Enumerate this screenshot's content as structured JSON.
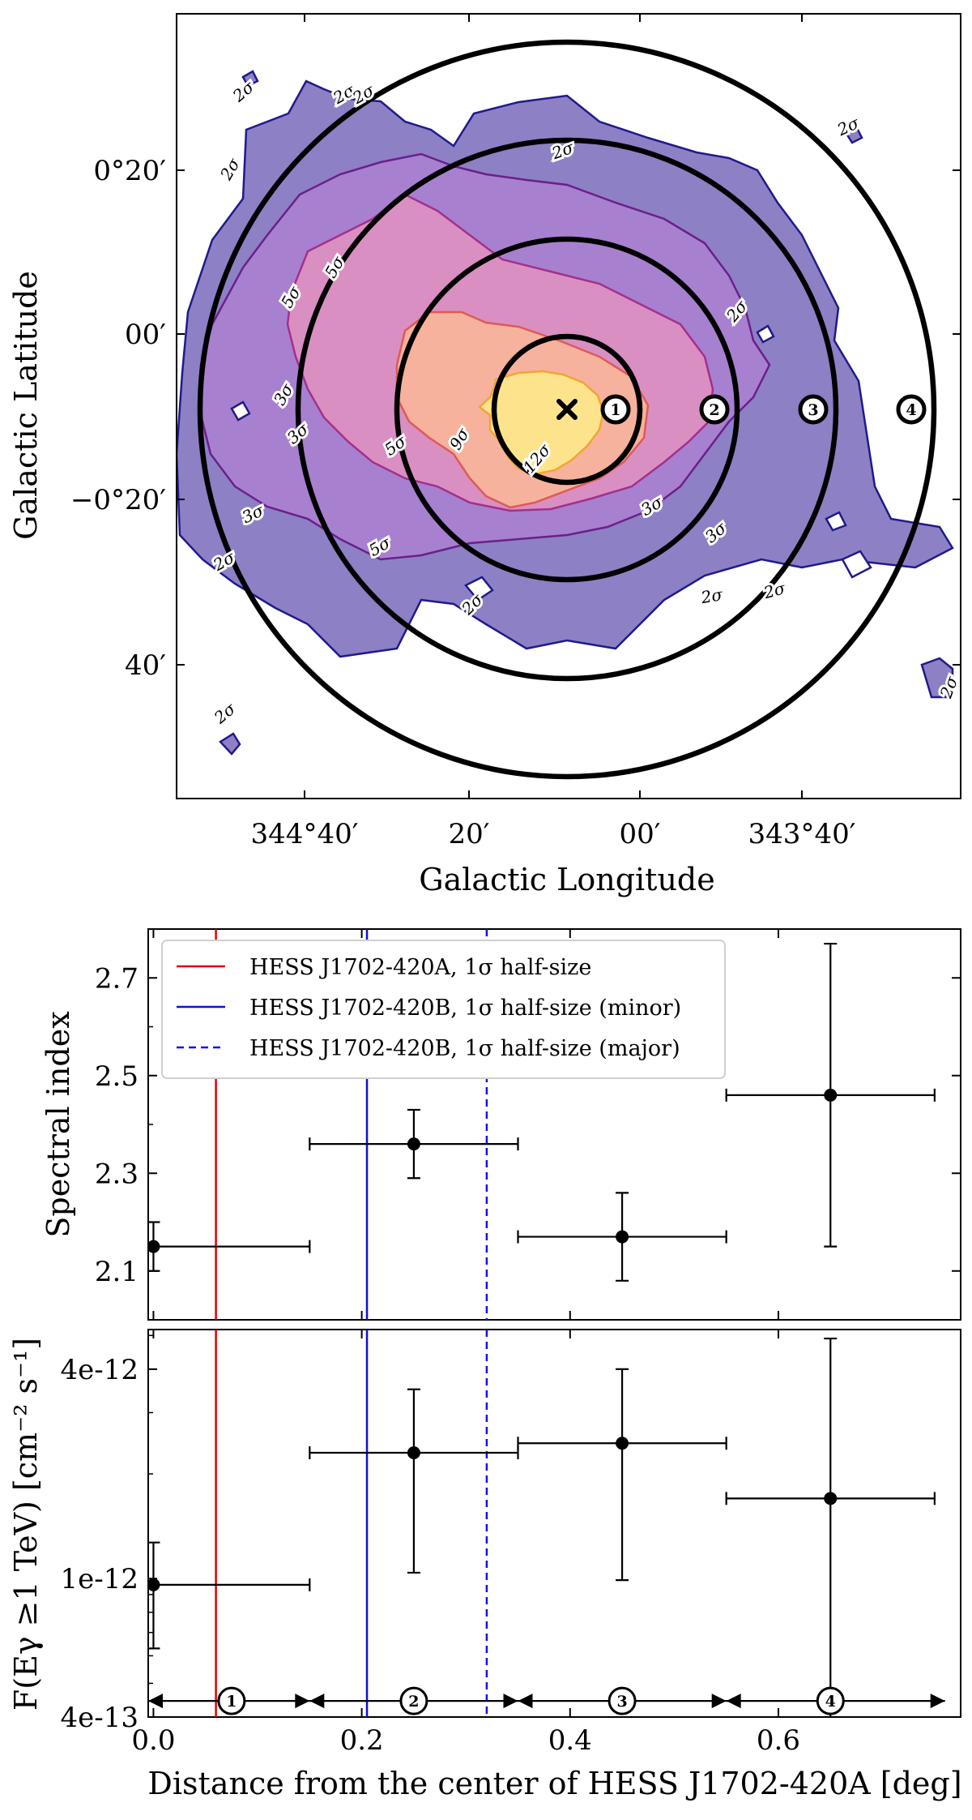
{
  "map": {
    "xlabel": "Galactic Longitude",
    "ylabel": "Galactic Latitude",
    "xticks": [
      "344°40′",
      "20′",
      "00′",
      "343°40′"
    ],
    "yticks": [
      "0°20′",
      "00′",
      "−0°20′",
      "40′"
    ],
    "contour_levels": [
      "2σ",
      "3σ",
      "5σ",
      "9σ",
      "12σ"
    ],
    "contour_fill_colors": [
      "#8d80c4",
      "#a880d0",
      "#d98fc2",
      "#f6b29c",
      "#fde48c"
    ],
    "contour_line_colors": [
      "#1f1a8c",
      "#6b1f8c",
      "#a4308a",
      "#de5a55",
      "#f2a531"
    ],
    "contour_labels": [
      "2σ",
      "2σ",
      "2σ",
      "2σ",
      "2σ",
      "2σ",
      "2σ",
      "2σ",
      "2σ",
      "2σ",
      "2σ",
      "2σ",
      "2σ",
      "3σ",
      "3σ",
      "3σ",
      "3σ",
      "3σ",
      "5σ",
      "5σ",
      "5σ",
      "5σ",
      "9σ",
      "12σ"
    ],
    "center_marker": "x-marker",
    "region_labels": [
      "1",
      "2",
      "3",
      "4"
    ]
  },
  "chart_data": [
    {
      "type": "scatter",
      "title": "",
      "xlabel": "Distance from the center of HESS J1702-420A [deg]",
      "ylabel": "Spectral index",
      "xlim": [
        -0.005,
        0.775
      ],
      "ylim": [
        2.0,
        2.8
      ],
      "yticks": [
        2.1,
        2.3,
        2.5,
        2.7
      ],
      "yticklabels": [
        "2.1",
        "2.3",
        "2.5",
        "2.7"
      ],
      "x": [
        0.0,
        0.25,
        0.45,
        0.65
      ],
      "xerr": [
        0.15,
        0.1,
        0.1,
        0.1
      ],
      "y": [
        2.15,
        2.36,
        2.17,
        2.46
      ],
      "yerr_low": [
        0.05,
        0.07,
        0.09,
        0.31
      ],
      "yerr_high": [
        0.05,
        0.07,
        0.09,
        0.31
      ],
      "vlines": [
        {
          "x": 0.06,
          "color": "#e00000",
          "style": "solid",
          "label": "HESS J1702-420A, 1σ half-size"
        },
        {
          "x": 0.205,
          "color": "#1010d0",
          "style": "solid",
          "label": "HESS J1702-420B, 1σ half-size (minor)"
        },
        {
          "x": 0.32,
          "color": "#1010ff",
          "style": "dashed",
          "label": "HESS J1702-420B, 1σ half-size (major)"
        }
      ],
      "legend_position": "top-left"
    },
    {
      "type": "scatter",
      "title": "",
      "xlabel": "Distance from the center of HESS J1702-420A [deg]",
      "ylabel": "F(Eγ ≥1 TeV) [cm⁻² s⁻¹]",
      "yscale": "log",
      "xlim": [
        -0.005,
        0.775
      ],
      "ylim": [
        4e-13,
        5.2e-12
      ],
      "xticks": [
        0.0,
        0.2,
        0.4,
        0.6
      ],
      "xticklabels": [
        "0.0",
        "0.2",
        "0.4",
        "0.6"
      ],
      "yticks": [
        4e-12,
        1e-12,
        4e-13
      ],
      "yticklabels": [
        "4e-12",
        "1e-12",
        "4e-13"
      ],
      "x": [
        0.0,
        0.25,
        0.45,
        0.65
      ],
      "xerr": [
        0.15,
        0.1,
        0.1,
        0.1
      ],
      "y": [
        9.6e-13,
        2.3e-12,
        2.45e-12,
        1.7e-12
      ],
      "yerr_low_abs": [
        6.3e-13,
        1.04e-12,
        9.9e-13,
        4e-13
      ],
      "yerr_high_abs": [
        1.27e-12,
        3.5e-12,
        4e-12,
        4.9e-12
      ],
      "vlines": [
        {
          "x": 0.06,
          "color": "#e00000",
          "style": "solid"
        },
        {
          "x": 0.205,
          "color": "#1010d0",
          "style": "solid"
        },
        {
          "x": 0.32,
          "color": "#1010ff",
          "style": "dashed"
        }
      ],
      "region_arrows": [
        {
          "from": -0.005,
          "to": 0.15,
          "label": "1",
          "label_x": 0.075
        },
        {
          "from": 0.15,
          "to": 0.35,
          "label": "2",
          "label_x": 0.25
        },
        {
          "from": 0.35,
          "to": 0.55,
          "label": "3",
          "label_x": 0.45
        },
        {
          "from": 0.55,
          "to": 0.76,
          "label": "4",
          "label_x": 0.65
        }
      ],
      "region_arrow_y": 4.45e-13
    }
  ]
}
